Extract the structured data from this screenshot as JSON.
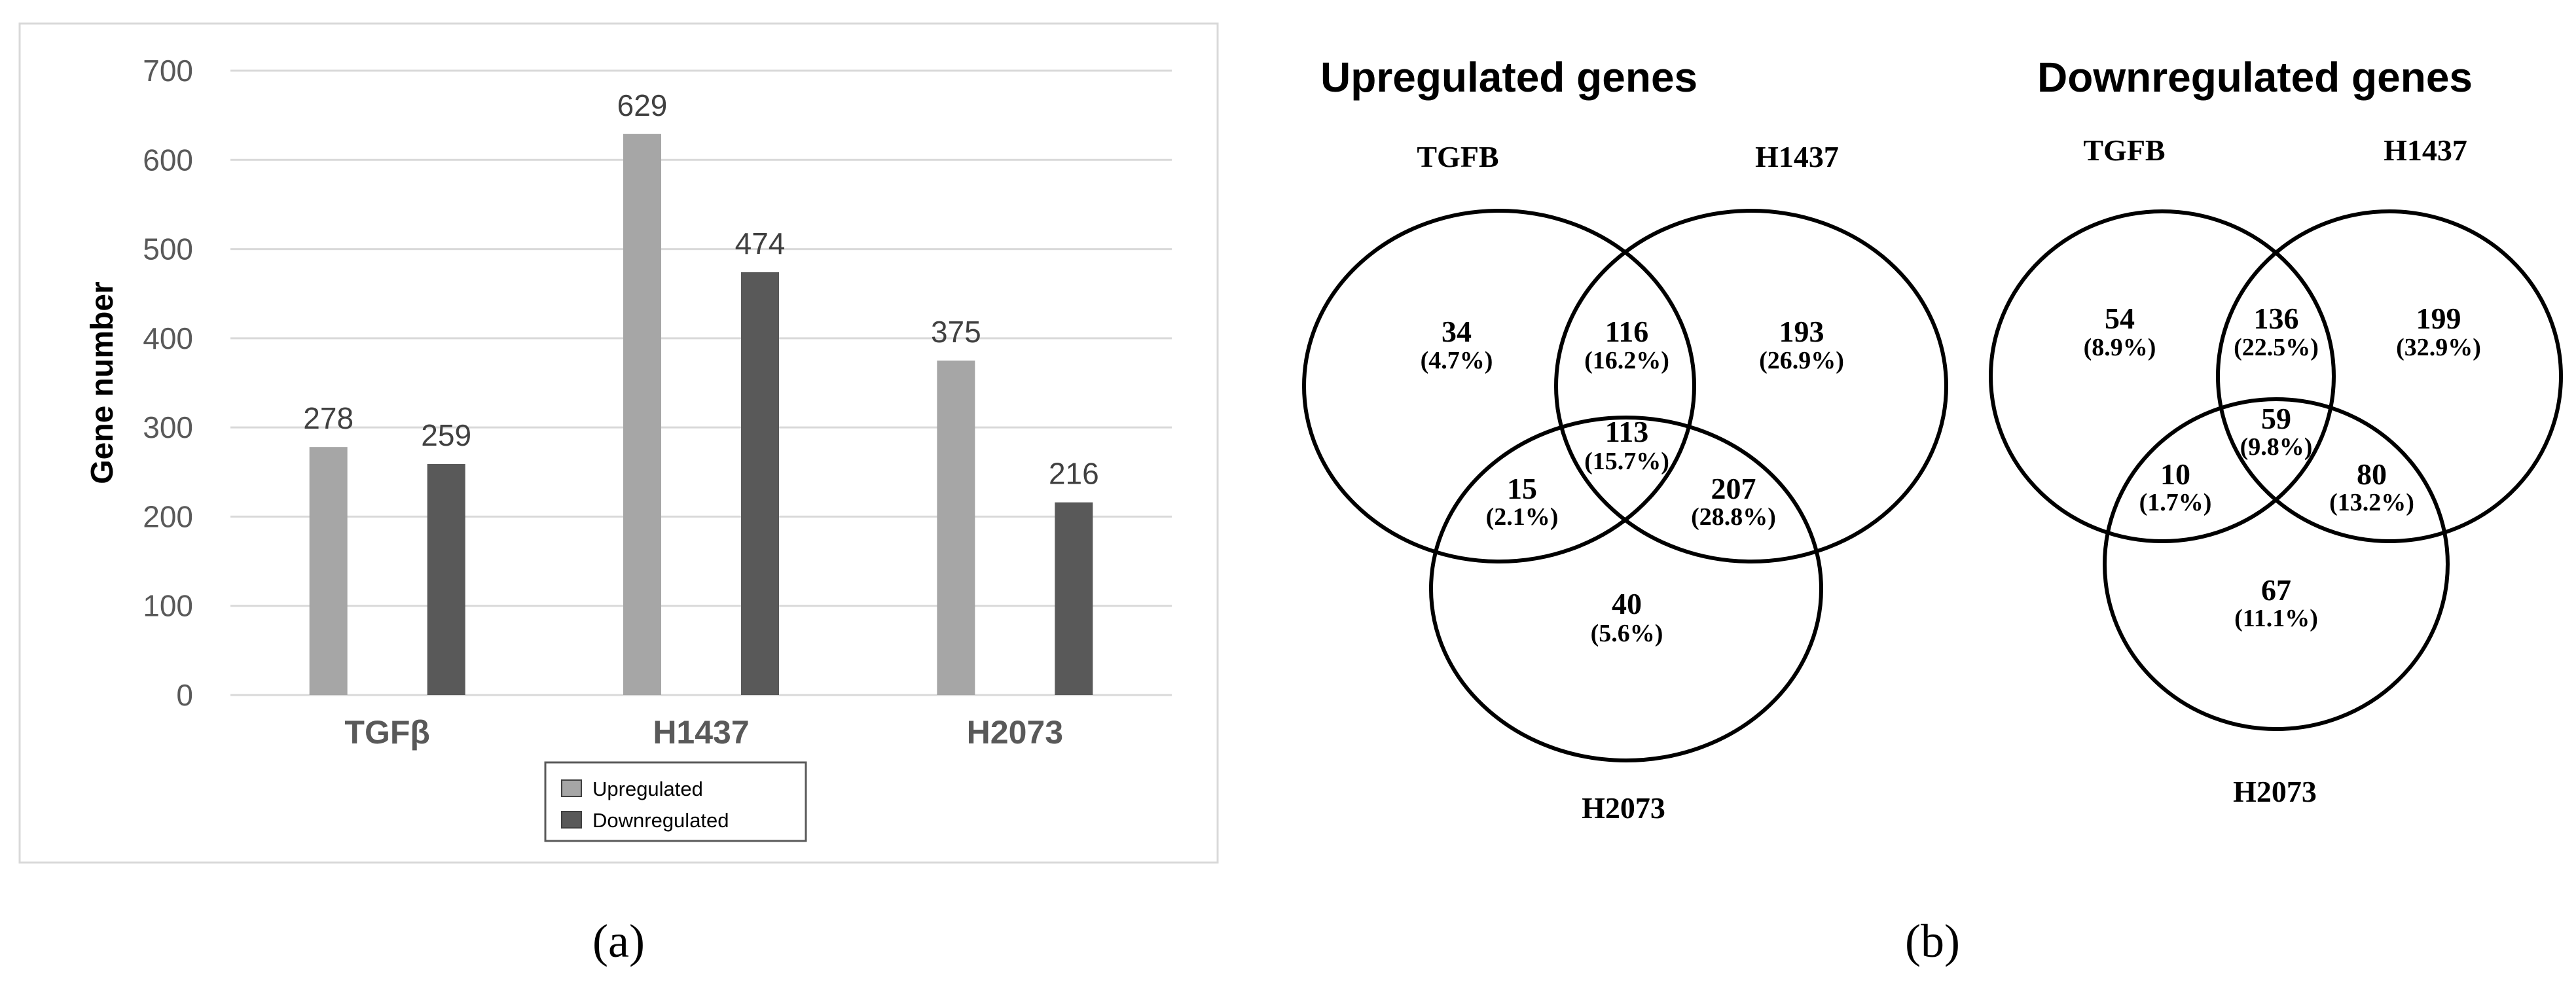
{
  "chart_data": [
    {
      "type": "bar",
      "categories": [
        "TGFβ",
        "H1437",
        "H2073"
      ],
      "series": [
        {
          "name": "Upregulated",
          "values": [
            278,
            629,
            375
          ],
          "color": "#a6a6a6"
        },
        {
          "name": "Downregulated",
          "values": [
            259,
            474,
            216
          ],
          "color": "#595959"
        }
      ],
      "ylabel": "Gene number",
      "xlabel": "",
      "ylim": [
        0,
        700
      ],
      "yticks": [
        "0",
        "100",
        "200",
        "300",
        "400",
        "500",
        "600",
        "700"
      ],
      "grid": true,
      "legend_position": "bottom-right"
    },
    {
      "type": "venn",
      "title": "Upregulated genes",
      "sets": [
        "TGFB",
        "H1437",
        "H2073"
      ],
      "regions": [
        {
          "sets": [
            "TGFB"
          ],
          "count": "34",
          "percent": "(4.7%)"
        },
        {
          "sets": [
            "TGFB",
            "H1437"
          ],
          "count": "116",
          "percent": "(16.2%)"
        },
        {
          "sets": [
            "H1437"
          ],
          "count": "193",
          "percent": "(26.9%)"
        },
        {
          "sets": [
            "TGFB",
            "H1437",
            "H2073"
          ],
          "count": "113",
          "percent": "(15.7%)"
        },
        {
          "sets": [
            "TGFB",
            "H2073"
          ],
          "count": "15",
          "percent": "(2.1%)"
        },
        {
          "sets": [
            "H1437",
            "H2073"
          ],
          "count": "207",
          "percent": "(28.8%)"
        },
        {
          "sets": [
            "H2073"
          ],
          "count": "40",
          "percent": "(5.6%)"
        }
      ]
    },
    {
      "type": "venn",
      "title": "Downregulated genes",
      "sets": [
        "TGFB",
        "H1437",
        "H2073"
      ],
      "regions": [
        {
          "sets": [
            "TGFB"
          ],
          "count": "54",
          "percent": "(8.9%)"
        },
        {
          "sets": [
            "TGFB",
            "H1437"
          ],
          "count": "136",
          "percent": "(22.5%)"
        },
        {
          "sets": [
            "H1437"
          ],
          "count": "199",
          "percent": "(32.9%)"
        },
        {
          "sets": [
            "TGFB",
            "H1437",
            "H2073"
          ],
          "count": "59",
          "percent": "(9.8%)"
        },
        {
          "sets": [
            "TGFB",
            "H2073"
          ],
          "count": "10",
          "percent": "(1.7%)"
        },
        {
          "sets": [
            "H1437",
            "H2073"
          ],
          "count": "80",
          "percent": "(13.2%)"
        },
        {
          "sets": [
            "H2073"
          ],
          "count": "67",
          "percent": "(11.1%)"
        }
      ]
    }
  ],
  "panel_labels": {
    "a": "(a)",
    "b": "(b)"
  }
}
